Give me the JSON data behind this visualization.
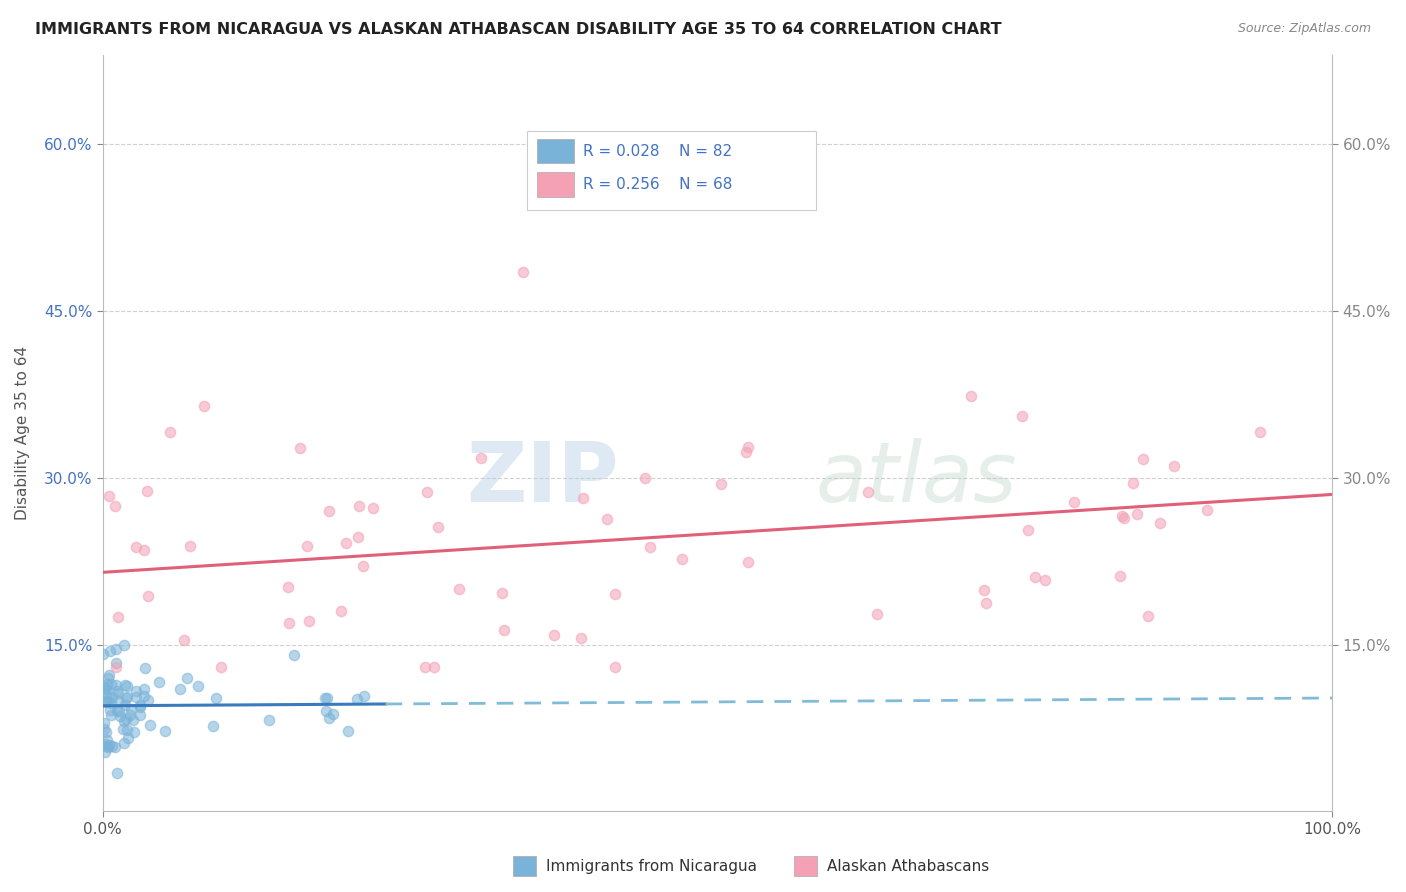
{
  "title": "IMMIGRANTS FROM NICARAGUA VS ALASKAN ATHABASCAN DISABILITY AGE 35 TO 64 CORRELATION CHART",
  "source": "Source: ZipAtlas.com",
  "ylabel": "Disability Age 35 to 64",
  "xlim": [
    0.0,
    1.0
  ],
  "ylim": [
    0.0,
    0.68
  ],
  "x_tick_labels": [
    "0.0%",
    "100.0%"
  ],
  "x_tick_values": [
    0.0,
    1.0
  ],
  "y_tick_labels": [
    "15.0%",
    "30.0%",
    "45.0%",
    "60.0%"
  ],
  "y_tick_values": [
    0.15,
    0.3,
    0.45,
    0.6
  ],
  "color_blue": "#7ab3d8",
  "color_pink": "#f4a0b5",
  "trend_blue_solid": "#3a7abf",
  "trend_blue_dash": "#80bcd8",
  "trend_pink": "#e0607a",
  "watermark_zip": "ZIP",
  "watermark_atlas": "atlas",
  "background_color": "#ffffff",
  "grid_color": "#cccccc",
  "legend_r1": "R = 0.028",
  "legend_n1": "N = 82",
  "legend_r2": "R = 0.256",
  "legend_n2": "N = 68",
  "blue_dot_color": "#7ab3d8",
  "pink_dot_color": "#f4a0b5",
  "tick_color": "#4472c4",
  "trend_pink_y0": 0.215,
  "trend_pink_y1": 0.285,
  "trend_blue_y0": 0.095,
  "trend_blue_y1": 0.102,
  "trend_blue_solid_x1": 0.23,
  "blue_scatter_seed": 101,
  "pink_scatter_seed": 202
}
